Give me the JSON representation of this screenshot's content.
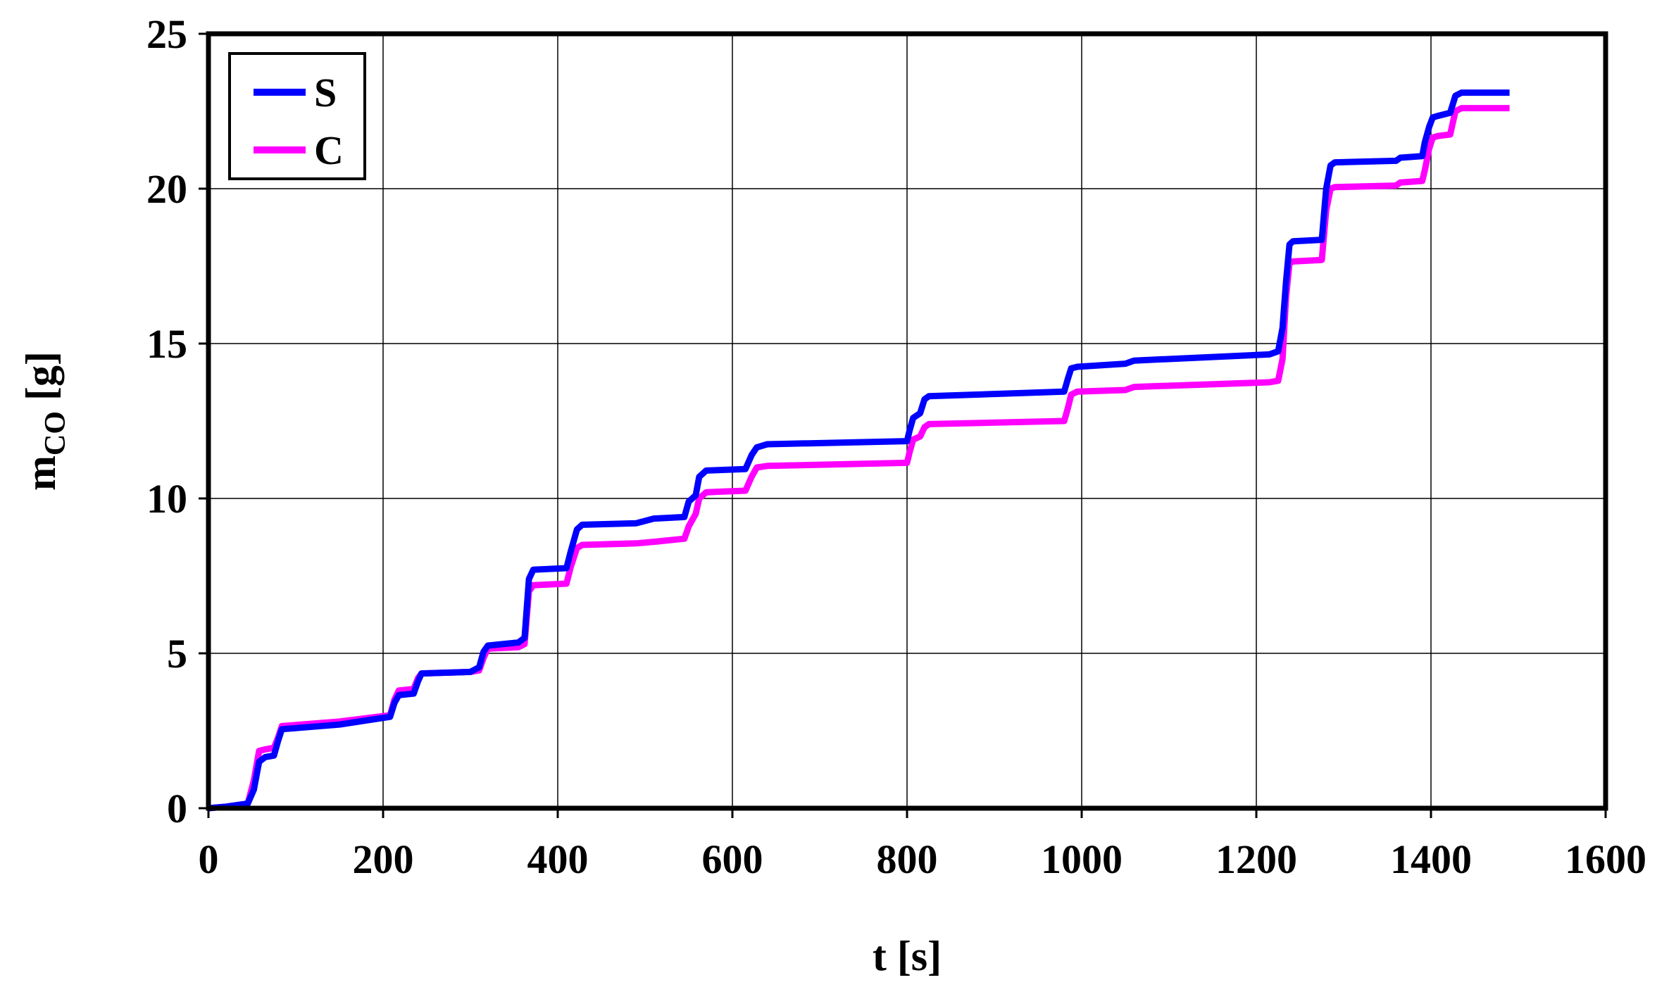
{
  "chart_data": {
    "type": "line",
    "title": "",
    "xlabel": "t [s]",
    "ylabel": {
      "main": "m",
      "subscript": "CO",
      "unit": " [g]"
    },
    "xlim": [
      0,
      1600
    ],
    "ylim": [
      0,
      25
    ],
    "xticks": [
      0,
      200,
      400,
      600,
      800,
      1000,
      1200,
      1400,
      1600
    ],
    "yticks": [
      0,
      5,
      10,
      15,
      20,
      25
    ],
    "grid": true,
    "legend": {
      "placement": "top-left",
      "entries": [
        "S",
        "C"
      ]
    },
    "series": [
      {
        "name": "S",
        "color": "#0000ff",
        "x": [
          0,
          20,
          45,
          52,
          58,
          65,
          75,
          80,
          84,
          150,
          208,
          213,
          218,
          235,
          240,
          244,
          300,
          310,
          315,
          320,
          355,
          362,
          367,
          372,
          410,
          415,
          422,
          428,
          490,
          510,
          545,
          550,
          558,
          562,
          570,
          615,
          622,
          628,
          640,
          800,
          803,
          807,
          815,
          820,
          825,
          980,
          984,
          988,
          995,
          1050,
          1060,
          1215,
          1225,
          1230,
          1234,
          1238,
          1242,
          1275,
          1280,
          1285,
          1290,
          1360,
          1365,
          1390,
          1393,
          1398,
          1402,
          1408,
          1422,
          1428,
          1435,
          1460,
          1490
        ],
        "y": [
          0,
          0.05,
          0.15,
          0.6,
          1.5,
          1.65,
          1.7,
          2.2,
          2.55,
          2.7,
          2.95,
          3.4,
          3.65,
          3.7,
          4.1,
          4.35,
          4.4,
          4.55,
          5.05,
          5.25,
          5.35,
          5.5,
          7.4,
          7.7,
          7.75,
          8.3,
          9.0,
          9.15,
          9.2,
          9.35,
          9.4,
          9.9,
          10.1,
          10.7,
          10.9,
          10.95,
          11.4,
          11.65,
          11.75,
          11.85,
          12.2,
          12.6,
          12.75,
          13.2,
          13.3,
          13.45,
          13.85,
          14.2,
          14.25,
          14.35,
          14.45,
          14.65,
          14.75,
          15.5,
          17.0,
          18.2,
          18.3,
          18.35,
          20.0,
          20.75,
          20.85,
          20.9,
          21.0,
          21.05,
          21.5,
          22.0,
          22.3,
          22.35,
          22.45,
          23.0,
          23.1,
          23.1,
          23.1
        ]
      },
      {
        "name": "C",
        "color": "#ff00ff",
        "x": [
          0,
          20,
          45,
          52,
          58,
          65,
          75,
          80,
          84,
          150,
          208,
          213,
          218,
          235,
          240,
          244,
          300,
          310,
          315,
          320,
          355,
          362,
          367,
          372,
          410,
          415,
          422,
          428,
          490,
          510,
          545,
          550,
          558,
          562,
          570,
          615,
          622,
          628,
          640,
          800,
          803,
          807,
          815,
          820,
          825,
          980,
          984,
          988,
          995,
          1050,
          1060,
          1215,
          1225,
          1230,
          1234,
          1238,
          1242,
          1275,
          1280,
          1285,
          1290,
          1360,
          1365,
          1390,
          1393,
          1398,
          1402,
          1408,
          1422,
          1428,
          1435,
          1460,
          1490
        ],
        "y": [
          0,
          0.05,
          0.15,
          0.9,
          1.85,
          1.9,
          1.95,
          2.3,
          2.65,
          2.8,
          3.0,
          3.5,
          3.8,
          3.85,
          4.2,
          4.35,
          4.4,
          4.45,
          4.85,
          5.15,
          5.2,
          5.3,
          7.0,
          7.2,
          7.25,
          7.8,
          8.4,
          8.5,
          8.55,
          8.6,
          8.7,
          9.1,
          9.5,
          10.0,
          10.2,
          10.25,
          10.7,
          11.0,
          11.05,
          11.15,
          11.5,
          11.9,
          12.0,
          12.3,
          12.4,
          12.5,
          12.9,
          13.35,
          13.45,
          13.5,
          13.6,
          13.75,
          13.8,
          14.5,
          16.5,
          17.6,
          17.65,
          17.7,
          19.3,
          20.0,
          20.05,
          20.1,
          20.2,
          20.25,
          20.6,
          21.3,
          21.65,
          21.7,
          21.75,
          22.5,
          22.6,
          22.6,
          22.6
        ]
      }
    ]
  }
}
